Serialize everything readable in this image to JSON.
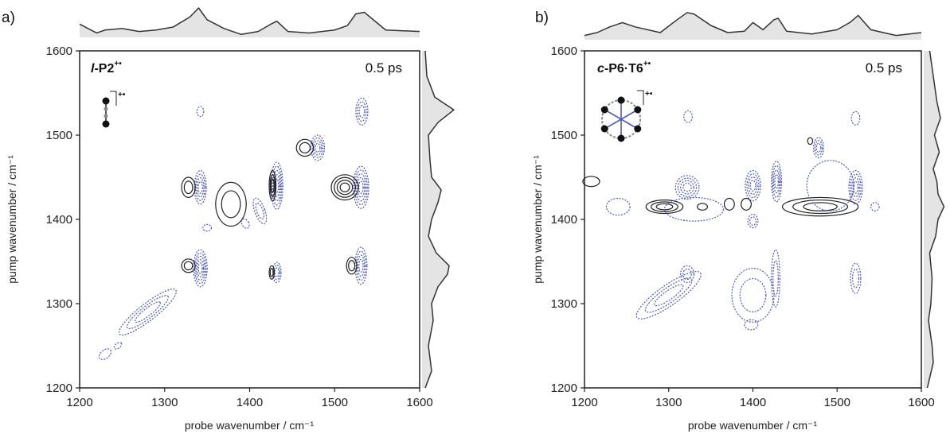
{
  "chart_data": [
    {
      "type": "contour",
      "panel_label": "a)",
      "sample_italic": "l",
      "sample_rest": "-P2",
      "sample_sup": "+•",
      "delay": "0.5 ps",
      "xlabel": "probe wavenumber / cm⁻¹",
      "ylabel": "pump wavenumber / cm⁻¹",
      "xlim": [
        1200,
        1600
      ],
      "ylim": [
        1200,
        1600
      ],
      "xticks": [
        "1200",
        "1300",
        "1400",
        "1500",
        "1600"
      ],
      "yticks": [
        "1200",
        "1300",
        "1400",
        "1500",
        "1600"
      ],
      "colors": {
        "positive": "#222222",
        "negative": "#4f59b8",
        "spectrum_fill": "#e4e4e4"
      },
      "top_spectrum": {
        "x": [
          1200,
          1210,
          1220,
          1230,
          1250,
          1270,
          1290,
          1310,
          1330,
          1340,
          1350,
          1370,
          1390,
          1410,
          1425,
          1432,
          1445,
          1470,
          1500,
          1515,
          1525,
          1535,
          1560,
          1600
        ],
        "y": [
          0.45,
          0.3,
          0.15,
          0.25,
          0.3,
          0.2,
          0.25,
          0.35,
          0.7,
          1.0,
          0.6,
          0.3,
          0.1,
          0.2,
          0.45,
          0.55,
          0.2,
          0.15,
          0.25,
          0.4,
          0.8,
          0.85,
          0.25,
          0.2
        ]
      },
      "right_spectrum": {
        "y": [
          1200,
          1220,
          1250,
          1280,
          1300,
          1320,
          1335,
          1345,
          1360,
          1380,
          1400,
          1420,
          1435,
          1450,
          1470,
          1500,
          1515,
          1530,
          1545,
          1570,
          1600
        ],
        "v": [
          0.1,
          0.3,
          0.2,
          0.35,
          0.3,
          0.5,
          0.8,
          0.85,
          0.45,
          0.2,
          0.3,
          0.5,
          0.6,
          0.3,
          0.25,
          0.2,
          0.5,
          1.0,
          0.4,
          0.15,
          0.1
        ]
      },
      "contours": [
        {
          "sign": "negative",
          "x": 1280,
          "y": 1290,
          "rx": 42,
          "ry": 10,
          "rot": 38,
          "n": 3
        },
        {
          "sign": "negative",
          "x": 1230,
          "y": 1240,
          "rx": 8,
          "ry": 5,
          "rot": 38,
          "n": 1
        },
        {
          "sign": "negative",
          "x": 1245,
          "y": 1250,
          "rx": 5,
          "ry": 3,
          "rot": 38,
          "n": 1
        },
        {
          "sign": "negative",
          "x": 1342,
          "y": 1342,
          "rx": 8,
          "ry": 22,
          "rot": 0,
          "n": 5
        },
        {
          "sign": "positive",
          "x": 1328,
          "y": 1345,
          "rx": 8,
          "ry": 8,
          "rot": 0,
          "n": 2
        },
        {
          "sign": "negative",
          "x": 1342,
          "y": 1438,
          "rx": 7,
          "ry": 20,
          "rot": 0,
          "n": 4
        },
        {
          "sign": "positive",
          "x": 1328,
          "y": 1438,
          "rx": 8,
          "ry": 12,
          "rot": 0,
          "n": 2
        },
        {
          "sign": "negative",
          "x": 1342,
          "y": 1528,
          "rx": 4,
          "ry": 6,
          "rot": 0,
          "n": 1
        },
        {
          "sign": "positive",
          "x": 1378,
          "y": 1418,
          "rx": 18,
          "ry": 26,
          "rot": 0,
          "n": 2
        },
        {
          "sign": "negative",
          "x": 1412,
          "y": 1410,
          "rx": 6,
          "ry": 16,
          "rot": 20,
          "n": 2
        },
        {
          "sign": "negative",
          "x": 1432,
          "y": 1440,
          "rx": 7,
          "ry": 28,
          "rot": 0,
          "n": 5
        },
        {
          "sign": "positive",
          "x": 1427,
          "y": 1440,
          "rx": 4,
          "ry": 18,
          "rot": 0,
          "n": 3
        },
        {
          "sign": "negative",
          "x": 1432,
          "y": 1337,
          "rx": 5,
          "ry": 12,
          "rot": 0,
          "n": 3
        },
        {
          "sign": "positive",
          "x": 1426,
          "y": 1337,
          "rx": 3,
          "ry": 8,
          "rot": 0,
          "n": 2
        },
        {
          "sign": "negative",
          "x": 1480,
          "y": 1485,
          "rx": 8,
          "ry": 15,
          "rot": 0,
          "n": 4
        },
        {
          "sign": "positive",
          "x": 1465,
          "y": 1485,
          "rx": 10,
          "ry": 10,
          "rot": 0,
          "n": 2
        },
        {
          "sign": "negative",
          "x": 1531,
          "y": 1438,
          "rx": 9,
          "ry": 25,
          "rot": 0,
          "n": 5
        },
        {
          "sign": "positive",
          "x": 1512,
          "y": 1438,
          "rx": 16,
          "ry": 15,
          "rot": 0,
          "n": 4
        },
        {
          "sign": "negative",
          "x": 1531,
          "y": 1345,
          "rx": 7,
          "ry": 22,
          "rot": 0,
          "n": 4
        },
        {
          "sign": "positive",
          "x": 1520,
          "y": 1345,
          "rx": 6,
          "ry": 10,
          "rot": 0,
          "n": 2
        },
        {
          "sign": "negative",
          "x": 1532,
          "y": 1528,
          "rx": 7,
          "ry": 16,
          "rot": 0,
          "n": 3
        },
        {
          "sign": "negative",
          "x": 1350,
          "y": 1390,
          "rx": 5,
          "ry": 4,
          "rot": 0,
          "n": 1
        },
        {
          "sign": "negative",
          "x": 1395,
          "y": 1395,
          "rx": 4,
          "ry": 6,
          "rot": 30,
          "n": 1
        }
      ]
    },
    {
      "type": "contour",
      "panel_label": "b)",
      "sample_italic": "c",
      "sample_rest": "-P6·T6",
      "sample_sup": "+•",
      "delay": "0.5 ps",
      "xlabel": "probe wavenumber / cm⁻¹",
      "ylabel": "pump wavenumber / cm⁻¹",
      "xlim": [
        1200,
        1600
      ],
      "ylim": [
        1200,
        1600
      ],
      "xticks": [
        "1200",
        "1300",
        "1400",
        "1500",
        "1600"
      ],
      "yticks": [
        "1200",
        "1300",
        "1400",
        "1500",
        "1600"
      ],
      "colors": {
        "positive": "#222222",
        "negative": "#4f59b8",
        "spectrum_fill": "#e4e4e4"
      },
      "top_spectrum": {
        "x": [
          1200,
          1215,
          1230,
          1245,
          1260,
          1290,
          1310,
          1322,
          1330,
          1350,
          1370,
          1390,
          1400,
          1412,
          1425,
          1430,
          1440,
          1470,
          1500,
          1515,
          1525,
          1540,
          1570,
          1600
        ],
        "y": [
          0.15,
          0.25,
          0.45,
          0.6,
          0.45,
          0.25,
          0.7,
          0.95,
          0.9,
          0.5,
          0.25,
          0.3,
          0.6,
          0.35,
          0.7,
          0.75,
          0.3,
          0.2,
          0.35,
          0.6,
          0.85,
          0.35,
          0.15,
          0.25
        ]
      },
      "right_spectrum": {
        "y": [
          1200,
          1230,
          1250,
          1280,
          1300,
          1330,
          1360,
          1380,
          1400,
          1415,
          1430,
          1445,
          1460,
          1480,
          1500,
          1520,
          1540,
          1570,
          1600
        ],
        "v": [
          0.15,
          0.4,
          0.35,
          0.2,
          0.3,
          0.35,
          0.25,
          0.5,
          0.6,
          0.85,
          0.6,
          0.55,
          0.4,
          0.65,
          0.45,
          0.7,
          0.55,
          0.4,
          0.25
        ]
      },
      "contours": [
        {
          "sign": "negative",
          "x": 1300,
          "y": 1310,
          "rx": 46,
          "ry": 12,
          "rot": 35,
          "n": 3
        },
        {
          "sign": "negative",
          "x": 1322,
          "y": 1335,
          "rx": 8,
          "ry": 10,
          "rot": 0,
          "n": 2
        },
        {
          "sign": "negative",
          "x": 1322,
          "y": 1438,
          "rx": 14,
          "ry": 14,
          "rot": 0,
          "n": 4
        },
        {
          "sign": "negative",
          "x": 1323,
          "y": 1522,
          "rx": 5,
          "ry": 7,
          "rot": 0,
          "n": 1
        },
        {
          "sign": "negative",
          "x": 1240,
          "y": 1415,
          "rx": 14,
          "ry": 10,
          "rot": 0,
          "n": 1
        },
        {
          "sign": "positive",
          "x": 1208,
          "y": 1445,
          "rx": 10,
          "ry": 6,
          "rot": 0,
          "n": 1
        },
        {
          "sign": "positive",
          "x": 1295,
          "y": 1415,
          "rx": 22,
          "ry": 8,
          "rot": 0,
          "n": 3
        },
        {
          "sign": "positive",
          "x": 1340,
          "y": 1415,
          "rx": 6,
          "ry": 4,
          "rot": 0,
          "n": 1
        },
        {
          "sign": "negative",
          "x": 1330,
          "y": 1412,
          "rx": 35,
          "ry": 14,
          "rot": 0,
          "n": 1
        },
        {
          "sign": "positive",
          "x": 1372,
          "y": 1418,
          "rx": 6,
          "ry": 7,
          "rot": 0,
          "n": 1
        },
        {
          "sign": "positive",
          "x": 1392,
          "y": 1418,
          "rx": 6,
          "ry": 7,
          "rot": 0,
          "n": 1
        },
        {
          "sign": "negative",
          "x": 1400,
          "y": 1440,
          "rx": 9,
          "ry": 18,
          "rot": 0,
          "n": 4
        },
        {
          "sign": "negative",
          "x": 1400,
          "y": 1398,
          "rx": 6,
          "ry": 8,
          "rot": 0,
          "n": 2
        },
        {
          "sign": "negative",
          "x": 1400,
          "y": 1310,
          "rx": 25,
          "ry": 32,
          "rot": 0,
          "n": 2
        },
        {
          "sign": "negative",
          "x": 1398,
          "y": 1275,
          "rx": 8,
          "ry": 6,
          "rot": 0,
          "n": 1
        },
        {
          "sign": "negative",
          "x": 1428,
          "y": 1445,
          "rx": 6,
          "ry": 24,
          "rot": 0,
          "n": 4
        },
        {
          "sign": "positive",
          "x": 1480,
          "y": 1415,
          "rx": 45,
          "ry": 11,
          "rot": 0,
          "n": 3
        },
        {
          "sign": "negative",
          "x": 1427,
          "y": 1330,
          "rx": 5,
          "ry": 34,
          "rot": 0,
          "n": 2
        },
        {
          "sign": "negative",
          "x": 1478,
          "y": 1485,
          "rx": 6,
          "ry": 12,
          "rot": 0,
          "n": 3
        },
        {
          "sign": "positive",
          "x": 1468,
          "y": 1493,
          "rx": 3,
          "ry": 4,
          "rot": 0,
          "n": 1
        },
        {
          "sign": "negative",
          "x": 1492,
          "y": 1440,
          "rx": 28,
          "ry": 30,
          "rot": 0,
          "n": 1
        },
        {
          "sign": "negative",
          "x": 1522,
          "y": 1438,
          "rx": 8,
          "ry": 20,
          "rot": 0,
          "n": 4
        },
        {
          "sign": "negative",
          "x": 1522,
          "y": 1520,
          "rx": 5,
          "ry": 8,
          "rot": 0,
          "n": 1
        },
        {
          "sign": "negative",
          "x": 1522,
          "y": 1330,
          "rx": 6,
          "ry": 18,
          "rot": 0,
          "n": 2
        },
        {
          "sign": "negative",
          "x": 1545,
          "y": 1415,
          "rx": 5,
          "ry": 5,
          "rot": 0,
          "n": 1
        }
      ]
    }
  ]
}
